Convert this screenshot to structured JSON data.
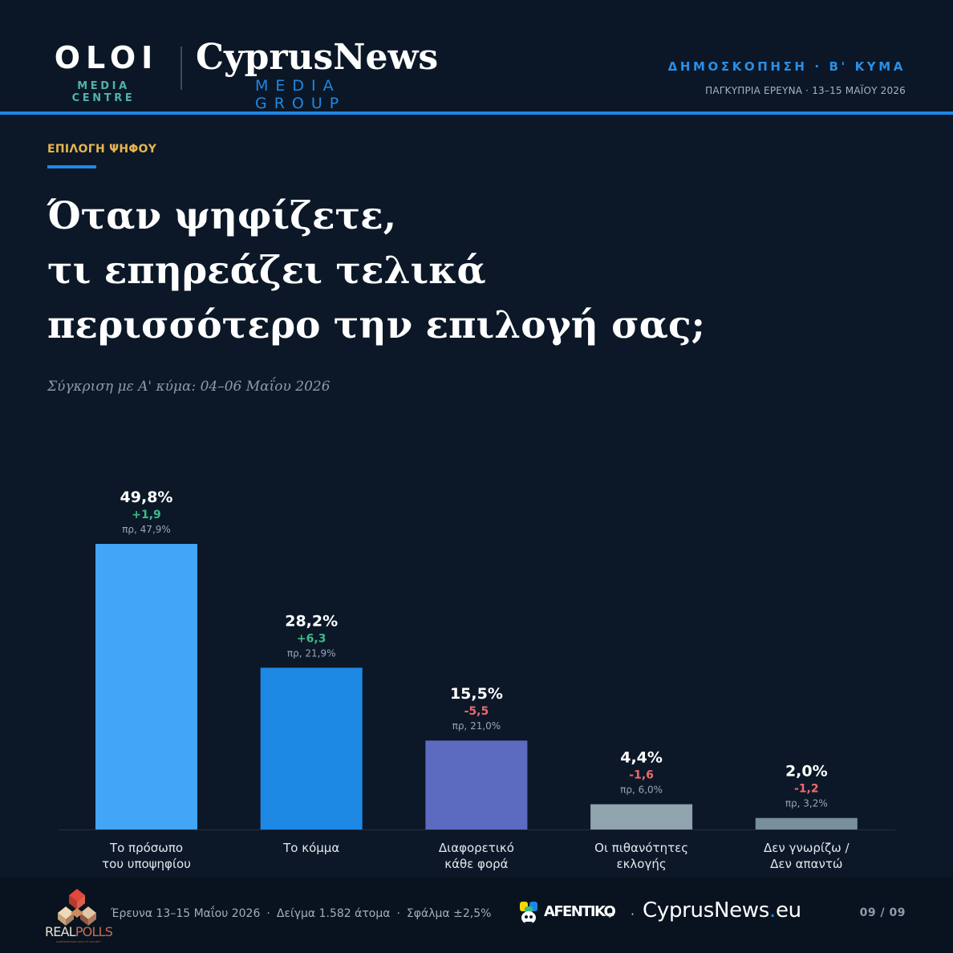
{
  "header": {
    "oloi_logo": "OLOI",
    "oloi_sub": "MEDIA CENTRE",
    "cyprusnews_logo": "CyprusNews",
    "cyprusnews_sub": "MEDIA GROUP",
    "wave_label": "ΔΗΜΟΣΚΟΠΗΣΗ · Β' ΚΥΜΑ",
    "survey_meta": "ΠΑΓΚΥΠΡΙΑ ΕΡΕΥΝΑ · 13–15 ΜΑΪΟΥ 2026",
    "accent_color": "#1e88e5"
  },
  "section_label": "ΕΠΙΛΟΓΗ ΨΗΦΟΥ",
  "question_lines": [
    "Όταν ψηφίζετε,",
    "τι επηρεάζει τελικά",
    "περισσότερο την επιλογή σας;"
  ],
  "compare_note": "Σύγκριση με Α' κύμα: 04–06 Μαΐου 2026",
  "chart_data": {
    "type": "bar",
    "categories": [
      [
        "Το πρόσωπο",
        "του υποψηφίου"
      ],
      [
        "Το κόμμα"
      ],
      [
        "Διαφορετικό",
        "κάθε φορά"
      ],
      [
        "Οι πιθανότητες",
        "εκλογής"
      ],
      [
        "Δεν γνωρίζω /",
        "Δεν απαντώ"
      ]
    ],
    "values": [
      49.8,
      28.2,
      15.5,
      4.4,
      2.0
    ],
    "value_labels": [
      "49,8%",
      "28,2%",
      "15,5%",
      "4,4%",
      "2,0%"
    ],
    "change_labels": [
      "+1,9",
      "+6,3",
      "-5,5",
      "-1,6",
      "-1,2"
    ],
    "previous_labels": [
      "πρ, 47,9%",
      "πρ, 21,9%",
      "πρ, 21,0%",
      "πρ, 6,0%",
      "πρ, 3,2%"
    ],
    "previous_values": [
      47.9,
      21.9,
      21.0,
      6.0,
      3.2
    ],
    "bar_colors": [
      "#42a5f5",
      "#1e88e5",
      "#5c6bc0",
      "#90a4ae",
      "#78909c"
    ],
    "positive_color": "#3dbb87",
    "negative_color": "#ef6a6a",
    "ylim": [
      0,
      50
    ],
    "grid": false
  },
  "footer": {
    "realpolls_real": "REAL",
    "realpolls_polls": "POLLS",
    "realpolls_tagline": "CONTRIBUTING DATA TO SOCIETY",
    "survey_dates": "Έρευνα 13–15 Μαΐου 2026",
    "sample": "Δείγμα 1.582 άτομα",
    "error": "Σφάλμα ±2,5%",
    "afentiko": "AFENTIKO",
    "afentiko_sup": "gr",
    "cyprusnews_name": "CyprusNews",
    "cyprusnews_dot": ".",
    "cyprusnews_tld": "eu",
    "page": "09 / 09"
  }
}
